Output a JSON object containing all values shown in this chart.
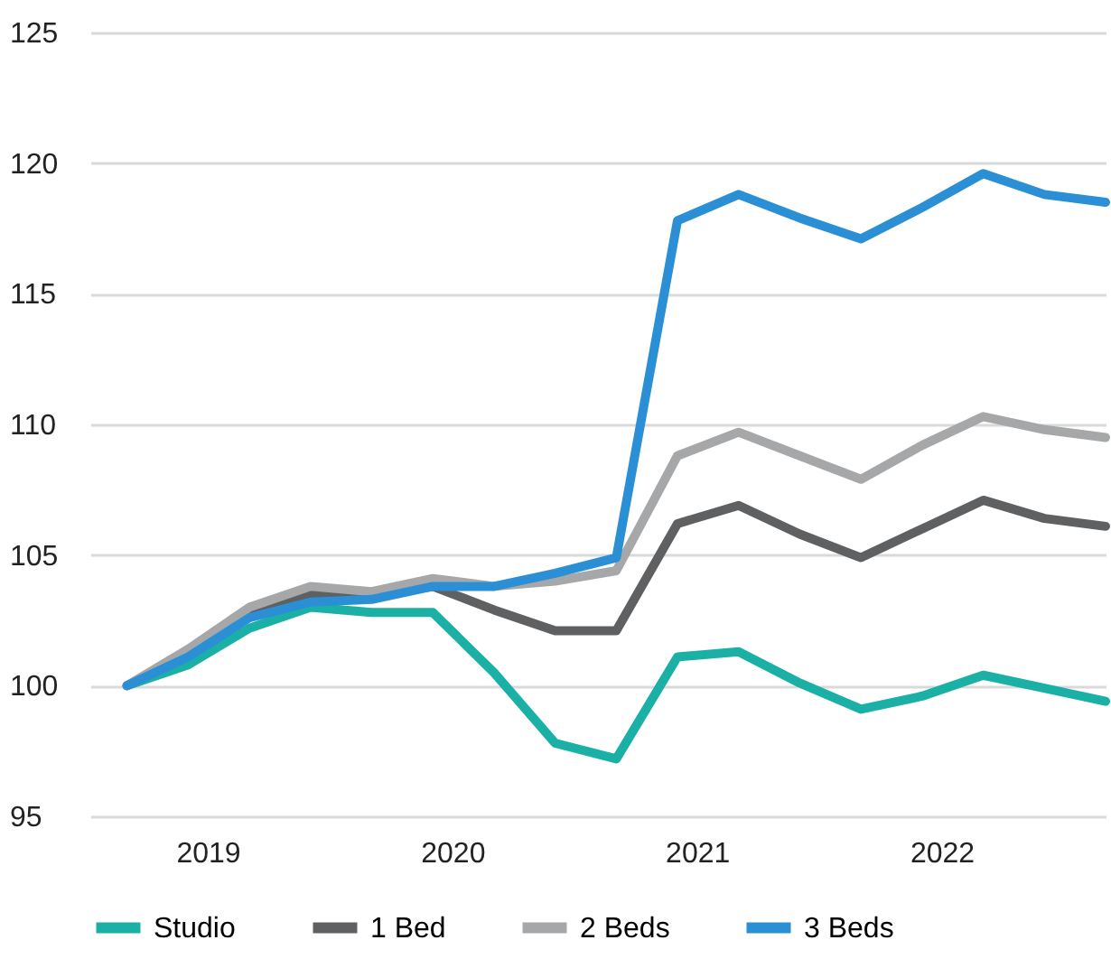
{
  "chart_data": {
    "type": "line",
    "x": [
      2018.75,
      2019.0,
      2019.25,
      2019.5,
      2019.75,
      2020.0,
      2020.25,
      2020.5,
      2020.75,
      2021.0,
      2021.25,
      2021.5,
      2021.75,
      2022.0,
      2022.25,
      2022.5,
      2022.75
    ],
    "series": [
      {
        "name": "Studio",
        "color": "#1ab0a6",
        "values": [
          100,
          100.8,
          102.2,
          103.0,
          102.8,
          102.8,
          100.5,
          97.8,
          97.2,
          101.1,
          101.3,
          100.1,
          99.1,
          99.6,
          100.4,
          99.9,
          99.4
        ]
      },
      {
        "name": "1 Bed",
        "color": "#5f6062",
        "values": [
          100,
          101.2,
          102.8,
          103.5,
          103.4,
          103.8,
          102.9,
          102.1,
          102.1,
          106.2,
          106.9,
          105.8,
          104.9,
          106.0,
          107.1,
          106.4,
          106.1
        ]
      },
      {
        "name": "2 Beds",
        "color": "#a6a7a9",
        "values": [
          100,
          101.4,
          103.0,
          103.8,
          103.6,
          104.1,
          103.8,
          104.0,
          104.4,
          108.8,
          109.7,
          108.8,
          107.9,
          109.2,
          110.3,
          109.8,
          109.5
        ]
      },
      {
        "name": "3 Beds",
        "color": "#2b8fd6",
        "values": [
          100,
          101.1,
          102.6,
          103.2,
          103.3,
          103.8,
          103.8,
          104.3,
          104.9,
          117.8,
          118.8,
          117.9,
          117.1,
          118.3,
          119.6,
          118.8,
          118.5
        ]
      }
    ],
    "xlim": [
      2018.6,
      2022.75
    ],
    "xticks": [
      {
        "value": 2019.08,
        "label": "2019"
      },
      {
        "value": 2020.08,
        "label": "2020"
      },
      {
        "value": 2021.08,
        "label": "2021"
      },
      {
        "value": 2022.08,
        "label": "2022"
      }
    ],
    "ylim": [
      95,
      125
    ],
    "yticks": [
      95,
      100,
      105,
      110,
      115,
      120,
      125
    ],
    "grid": "y",
    "legend": "bottom",
    "line_style": "solid",
    "marker": "none"
  }
}
